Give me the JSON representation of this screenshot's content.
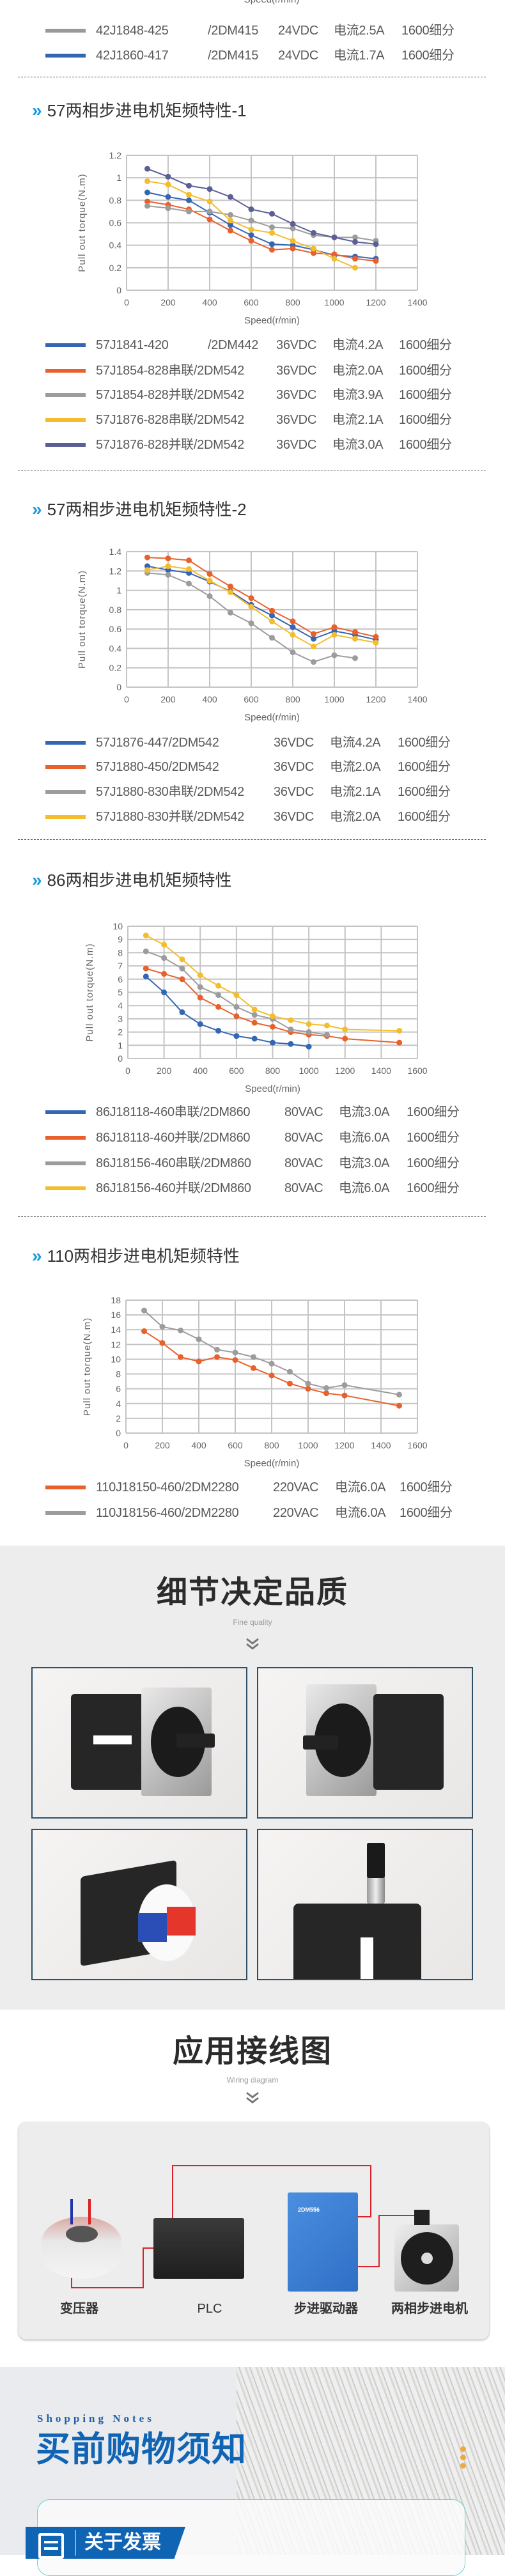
{
  "top_fragment": {
    "speed_label": "Speed(r/min)"
  },
  "top_legend": [
    {
      "model": "42J1848-425",
      "driver": "/2DM415",
      "voltage": "24VDC",
      "current": "电流2.5A",
      "steps": "1600细分",
      "color": "#999999"
    },
    {
      "model": "42J1860-417",
      "driver": "/2DM415",
      "voltage": "24VDC",
      "current": "电流1.7A",
      "steps": "1600细分",
      "color": "#3466b4"
    }
  ],
  "chart_data": [
    {
      "type": "line",
      "title": "57两相步进电机矩频特性-1",
      "xlabel": "Speed(r/min)",
      "ylabel": "Pull out torque(N.m)",
      "xlim": [
        0,
        1400
      ],
      "ylim": [
        0,
        1.2
      ],
      "xticks": [
        "0",
        "200",
        "400",
        "600",
        "800",
        "1000",
        "1200",
        "1400"
      ],
      "yticks": [
        "0",
        "0.2",
        "0.4",
        "0.6",
        "0.8",
        "1",
        "1.2"
      ],
      "grid": true,
      "x": [
        100,
        200,
        300,
        400,
        500,
        600,
        700,
        800,
        900,
        1000,
        1100,
        1200
      ],
      "series": [
        {
          "color": "#3466b4",
          "values": [
            0.87,
            0.83,
            0.8,
            0.69,
            0.58,
            0.49,
            0.41,
            0.4,
            0.36,
            0.31,
            0.3,
            0.28
          ],
          "legend": {
            "model": "57J1841-420",
            "driver": "/2DM442",
            "voltage": "36VDC",
            "current": "电流4.2A",
            "steps": "1600细分"
          }
        },
        {
          "color": "#e8612c",
          "values": [
            0.79,
            0.76,
            0.72,
            0.63,
            0.53,
            0.44,
            0.36,
            0.37,
            0.33,
            0.32,
            0.28,
            0.26
          ],
          "legend": {
            "model": "57J1854-828串联/2DM542",
            "driver": "",
            "voltage": "36VDC",
            "current": "电流2.0A",
            "steps": "1600细分"
          }
        },
        {
          "color": "#9c9c9c",
          "values": [
            0.75,
            0.73,
            0.7,
            0.7,
            0.67,
            0.62,
            0.56,
            0.55,
            0.49,
            0.47,
            0.47,
            0.44
          ],
          "legend": {
            "model": "57J1854-828并联/2DM542",
            "driver": "",
            "voltage": "36VDC",
            "current": "电流3.9A",
            "steps": "1600细分"
          }
        },
        {
          "color": "#f3bd2e",
          "values": [
            0.97,
            0.94,
            0.85,
            0.79,
            0.62,
            0.54,
            0.51,
            0.44,
            0.37,
            0.28,
            0.2,
            null
          ],
          "legend": {
            "model": "57J1876-828串联/2DM542",
            "driver": "",
            "voltage": "36VDC",
            "current": "电流2.1A",
            "steps": "1600细分"
          }
        },
        {
          "color": "#5b5f96",
          "values": [
            1.08,
            1.01,
            0.93,
            0.9,
            0.83,
            0.72,
            0.68,
            0.59,
            0.51,
            0.47,
            0.43,
            0.41
          ],
          "legend": {
            "model": "57J1876-828并联/2DM542",
            "driver": "",
            "voltage": "36VDC",
            "current": "电流3.0A",
            "steps": "1600细分"
          }
        }
      ]
    },
    {
      "type": "line",
      "title": "57两相步进电机矩频特性-2",
      "xlabel": "Speed(r/min)",
      "ylabel": "Pull out torque(N.m)",
      "xlim": [
        0,
        1400
      ],
      "ylim": [
        0,
        1.4
      ],
      "xticks": [
        "0",
        "200",
        "400",
        "600",
        "800",
        "1000",
        "1200",
        "1400"
      ],
      "yticks": [
        "0",
        "0.2",
        "0.4",
        "0.6",
        "0.8",
        "1",
        "1.2",
        "1.4"
      ],
      "grid": true,
      "x": [
        100,
        200,
        300,
        400,
        500,
        600,
        700,
        800,
        900,
        1000,
        1100,
        1200
      ],
      "series": [
        {
          "color": "#3466b4",
          "values": [
            1.25,
            1.21,
            1.18,
            1.09,
            0.99,
            0.85,
            0.74,
            0.62,
            0.5,
            0.58,
            0.54,
            0.49
          ],
          "legend": {
            "model": "57J1876-447/2DM542",
            "driver": "",
            "voltage": "36VDC",
            "current": "电流4.2A",
            "steps": "1600细分"
          }
        },
        {
          "color": "#e8612c",
          "values": [
            1.34,
            1.33,
            1.31,
            1.17,
            1.04,
            0.92,
            0.79,
            0.68,
            0.55,
            0.62,
            0.57,
            0.52
          ],
          "legend": {
            "model": "57J1880-450/2DM542",
            "driver": "",
            "voltage": "36VDC",
            "current": "电流2.0A",
            "steps": "1600细分"
          }
        },
        {
          "color": "#9c9c9c",
          "values": [
            1.18,
            1.16,
            1.07,
            0.94,
            0.77,
            0.66,
            0.51,
            0.36,
            0.26,
            0.33,
            0.3,
            null
          ],
          "legend": {
            "model": "57J1880-830串联/2DM542",
            "driver": "",
            "voltage": "36VDC",
            "current": "电流2.1A",
            "steps": "1600细分"
          }
        },
        {
          "color": "#f3bd2e",
          "values": [
            1.21,
            1.25,
            1.22,
            1.1,
            0.98,
            0.83,
            0.68,
            0.54,
            0.42,
            0.54,
            0.5,
            0.46
          ],
          "legend": {
            "model": "57J1880-830并联/2DM542",
            "driver": "",
            "voltage": "36VDC",
            "current": "电流2.0A",
            "steps": "1600细分"
          }
        }
      ]
    },
    {
      "type": "line",
      "title": "86两相步进电机矩频特性",
      "xlabel": "Speed(r/min)",
      "ylabel": "Pull out torque(N.m)",
      "xlim": [
        0,
        1600
      ],
      "ylim": [
        0,
        10
      ],
      "xticks": [
        "0",
        "200",
        "400",
        "600",
        "800",
        "1000",
        "1200",
        "1400",
        "1600"
      ],
      "yticks": [
        "0",
        "1",
        "2",
        "3",
        "4",
        "5",
        "6",
        "7",
        "8",
        "9",
        "10"
      ],
      "grid": true,
      "x": [
        100,
        200,
        300,
        400,
        500,
        600,
        700,
        800,
        900,
        1000,
        1100,
        1200,
        1500
      ],
      "series": [
        {
          "color": "#3466b4",
          "values": [
            6.2,
            5.0,
            3.5,
            2.6,
            2.1,
            1.7,
            1.5,
            1.2,
            1.1,
            0.9,
            null,
            null,
            null
          ],
          "legend": {
            "model": "86J18118-460串联/2DM860",
            "driver": "",
            "voltage": "80VAC",
            "current": "电流3.0A",
            "steps": "1600细分"
          }
        },
        {
          "color": "#e8612c",
          "values": [
            6.8,
            6.4,
            6.0,
            4.6,
            3.9,
            3.2,
            2.7,
            2.4,
            2.0,
            1.8,
            1.7,
            1.5,
            1.2
          ],
          "legend": {
            "model": "86J18118-460并联/2DM860",
            "driver": "",
            "voltage": "80VAC",
            "current": "电流6.0A",
            "steps": "1600细分"
          }
        },
        {
          "color": "#9c9c9c",
          "values": [
            8.1,
            7.6,
            6.8,
            5.4,
            4.8,
            3.9,
            3.3,
            3.0,
            2.2,
            2.0,
            1.8,
            null,
            null
          ],
          "legend": {
            "model": "86J18156-460串联/2DM860",
            "driver": "",
            "voltage": "80VAC",
            "current": "电流3.0A",
            "steps": "1600细分"
          }
        },
        {
          "color": "#f3bd2e",
          "values": [
            9.3,
            8.6,
            7.5,
            6.3,
            5.5,
            4.8,
            3.7,
            3.2,
            2.9,
            2.6,
            2.5,
            2.2,
            2.1
          ],
          "legend": {
            "model": "86J18156-460并联/2DM860",
            "driver": "",
            "voltage": "80VAC",
            "current": "电流6.0A",
            "steps": "1600细分"
          }
        }
      ]
    },
    {
      "type": "line",
      "title": "110两相步进电机矩频特性",
      "xlabel": "Speed(r/min)",
      "ylabel": "Pull out torque(N.m)",
      "xlim": [
        0,
        1600
      ],
      "ylim": [
        0,
        18
      ],
      "xticks": [
        "0",
        "200",
        "400",
        "600",
        "800",
        "1000",
        "1200",
        "1400",
        "1600"
      ],
      "yticks": [
        "0",
        "2",
        "4",
        "6",
        "8",
        "10",
        "12",
        "14",
        "16",
        "18"
      ],
      "grid": true,
      "x": [
        100,
        200,
        300,
        400,
        500,
        600,
        700,
        800,
        900,
        1000,
        1100,
        1200,
        1500
      ],
      "series": [
        {
          "color": "#e8612c",
          "values": [
            13.8,
            12.2,
            10.3,
            9.7,
            10.3,
            9.9,
            8.8,
            7.8,
            6.7,
            6.0,
            5.4,
            5.1,
            3.7
          ],
          "legend": {
            "model": "110J18150-460/2DM2280",
            "driver": "",
            "voltage": "220VAC",
            "current": "电流6.0A",
            "steps": "1600细分"
          }
        },
        {
          "color": "#9c9c9c",
          "values": [
            16.6,
            14.4,
            13.9,
            12.7,
            11.3,
            10.9,
            10.3,
            9.4,
            8.3,
            6.7,
            6.1,
            6.5,
            5.2
          ],
          "legend": {
            "model": "110J18156-460/2DM2280",
            "driver": "",
            "voltage": "220VAC",
            "current": "电流6.0A",
            "steps": "1600细分"
          }
        }
      ]
    }
  ],
  "detail": {
    "title": "细节决定品质",
    "subtitle": "Fine quality"
  },
  "wiring": {
    "title": "应用接线图",
    "subtitle": "Wiring diagram",
    "components": [
      "变压器",
      "PLC",
      "步进驱动器",
      "两相步进电机"
    ],
    "driver_model": "2DM556"
  },
  "shopping": {
    "subtitle_en": "Shopping Notes",
    "title": "买前购物须知",
    "tab_label": "关于发票"
  },
  "colors": {
    "accent_blue": "#1064b4",
    "chevron_blue": "#1a9be0",
    "wire_red": "#d9222a",
    "dot_orange": "#f2a93b"
  }
}
